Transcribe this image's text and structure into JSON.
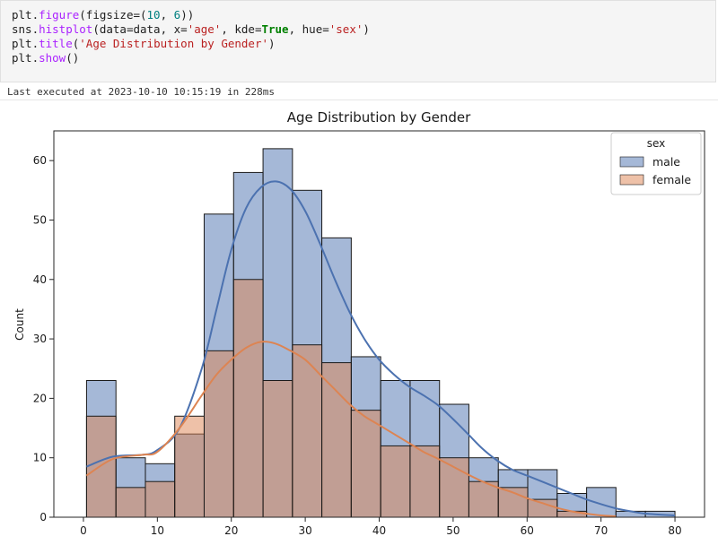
{
  "code_cell": {
    "lines": [
      "plt.figure(figsize=(10, 6))",
      "sns.histplot(data=data, x='age', kde=True, hue='sex')",
      "plt.title('Age Distribution by Gender')",
      "plt.show()"
    ]
  },
  "exec_info": "Last executed at 2023-10-10 10:15:19 in 228ms",
  "chart_data": {
    "type": "bar",
    "subtype": "histogram_with_kde",
    "title": "Age Distribution by Gender",
    "xlabel": "",
    "ylabel": "Count",
    "xlim": [
      -4,
      84
    ],
    "ylim": [
      0,
      65
    ],
    "xticks": [
      0,
      10,
      20,
      30,
      40,
      50,
      60,
      70,
      80
    ],
    "yticks": [
      0,
      10,
      20,
      30,
      40,
      50,
      60
    ],
    "bin_edges": [
      0.42,
      4.4,
      8.38,
      12.35,
      16.33,
      20.31,
      24.29,
      28.27,
      32.24,
      36.22,
      40.2,
      44.18,
      48.16,
      52.13,
      56.11,
      60.09,
      64.07,
      68.05,
      72.02,
      76.0,
      80.0
    ],
    "legend": {
      "title": "sex",
      "placement": "top-right"
    },
    "series": [
      {
        "name": "male",
        "color": "#4c72b0",
        "counts": [
          23,
          10,
          9,
          14,
          51,
          58,
          62,
          55,
          47,
          27,
          23,
          23,
          19,
          10,
          8,
          8,
          4,
          5,
          1,
          1
        ],
        "kde": [
          [
            0.42,
            8.5
          ],
          [
            4,
            10.2
          ],
          [
            8,
            10.5
          ],
          [
            10,
            11.3
          ],
          [
            13,
            15
          ],
          [
            16,
            25
          ],
          [
            18,
            35
          ],
          [
            20,
            45
          ],
          [
            22,
            52
          ],
          [
            24,
            55.5
          ],
          [
            26,
            56.5
          ],
          [
            28,
            55.2
          ],
          [
            30,
            51.5
          ],
          [
            32,
            46
          ],
          [
            34,
            40
          ],
          [
            36,
            34.5
          ],
          [
            38,
            30
          ],
          [
            40,
            26.5
          ],
          [
            42,
            24
          ],
          [
            44,
            22
          ],
          [
            46,
            20.5
          ],
          [
            48,
            18.8
          ],
          [
            50,
            16.5
          ],
          [
            52,
            14
          ],
          [
            54,
            11.5
          ],
          [
            56,
            9.5
          ],
          [
            58,
            8
          ],
          [
            60,
            7
          ],
          [
            62,
            6
          ],
          [
            64,
            5
          ],
          [
            66,
            4
          ],
          [
            68,
            3
          ],
          [
            70,
            2.2
          ],
          [
            72,
            1.5
          ],
          [
            74,
            1
          ],
          [
            76,
            0.6
          ],
          [
            80,
            0.3
          ]
        ]
      },
      {
        "name": "female",
        "color": "#dd8452",
        "counts": [
          17,
          5,
          6,
          17,
          28,
          40,
          23,
          29,
          26,
          18,
          12,
          12,
          10,
          6,
          5,
          3,
          1,
          0,
          0,
          0
        ],
        "kde": [
          [
            0.42,
            7
          ],
          [
            4,
            9.8
          ],
          [
            8,
            10.5
          ],
          [
            10,
            11
          ],
          [
            13,
            15
          ],
          [
            16,
            20.5
          ],
          [
            18,
            24
          ],
          [
            20,
            26.5
          ],
          [
            22,
            28.5
          ],
          [
            24,
            29.5
          ],
          [
            26,
            29.2
          ],
          [
            28,
            28
          ],
          [
            30,
            26.5
          ],
          [
            32,
            24
          ],
          [
            34,
            21.5
          ],
          [
            36,
            19
          ],
          [
            38,
            17
          ],
          [
            40,
            15.5
          ],
          [
            42,
            14
          ],
          [
            44,
            12.5
          ],
          [
            46,
            11
          ],
          [
            48,
            9.8
          ],
          [
            50,
            8.5
          ],
          [
            52,
            7.2
          ],
          [
            54,
            6
          ],
          [
            56,
            5
          ],
          [
            58,
            4.2
          ],
          [
            60,
            3.2
          ],
          [
            62,
            2.4
          ],
          [
            64,
            1.6
          ],
          [
            66,
            1
          ],
          [
            68,
            0.6
          ],
          [
            70,
            0.3
          ],
          [
            72,
            0.15
          ]
        ]
      }
    ]
  }
}
